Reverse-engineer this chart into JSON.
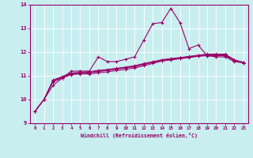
{
  "xlabel": "Windchill (Refroidissement éolien,°C)",
  "background_color": "#c8eef0",
  "grid_color": "#b0dde0",
  "line_color": "#990066",
  "xlim": [
    -0.5,
    23.5
  ],
  "ylim": [
    9,
    14
  ],
  "xticks": [
    0,
    1,
    2,
    3,
    4,
    5,
    6,
    7,
    8,
    9,
    10,
    11,
    12,
    13,
    14,
    15,
    16,
    17,
    18,
    19,
    20,
    21,
    22,
    23
  ],
  "yticks": [
    9,
    10,
    11,
    12,
    13,
    14
  ],
  "series": {
    "main": [
      9.5,
      10.0,
      10.6,
      10.9,
      11.2,
      11.2,
      11.2,
      11.8,
      11.6,
      11.6,
      11.7,
      11.8,
      12.5,
      13.2,
      13.25,
      13.85,
      13.25,
      12.15,
      12.3,
      11.85,
      11.8,
      11.8,
      11.6,
      11.55
    ],
    "line2": [
      9.5,
      10.0,
      10.75,
      10.9,
      11.05,
      11.08,
      11.08,
      11.12,
      11.17,
      11.22,
      11.27,
      11.33,
      11.42,
      11.52,
      11.62,
      11.67,
      11.72,
      11.77,
      11.82,
      11.85,
      11.85,
      11.85,
      11.65,
      11.55
    ],
    "line3": [
      9.5,
      10.0,
      10.78,
      10.93,
      11.08,
      11.1,
      11.12,
      11.18,
      11.22,
      11.28,
      11.33,
      11.38,
      11.47,
      11.56,
      11.65,
      11.69,
      11.74,
      11.79,
      11.84,
      11.88,
      11.88,
      11.88,
      11.66,
      11.55
    ],
    "line4": [
      9.5,
      10.0,
      10.8,
      10.95,
      11.1,
      11.13,
      11.15,
      11.2,
      11.25,
      11.3,
      11.35,
      11.4,
      11.5,
      11.58,
      11.67,
      11.71,
      11.76,
      11.81,
      11.86,
      11.9,
      11.9,
      11.9,
      11.67,
      11.56
    ],
    "line5": [
      9.5,
      10.0,
      10.82,
      10.97,
      11.12,
      11.15,
      11.18,
      11.23,
      11.27,
      11.32,
      11.37,
      11.43,
      11.52,
      11.6,
      11.68,
      11.73,
      11.77,
      11.82,
      11.87,
      11.92,
      11.92,
      11.92,
      11.68,
      11.57
    ]
  }
}
